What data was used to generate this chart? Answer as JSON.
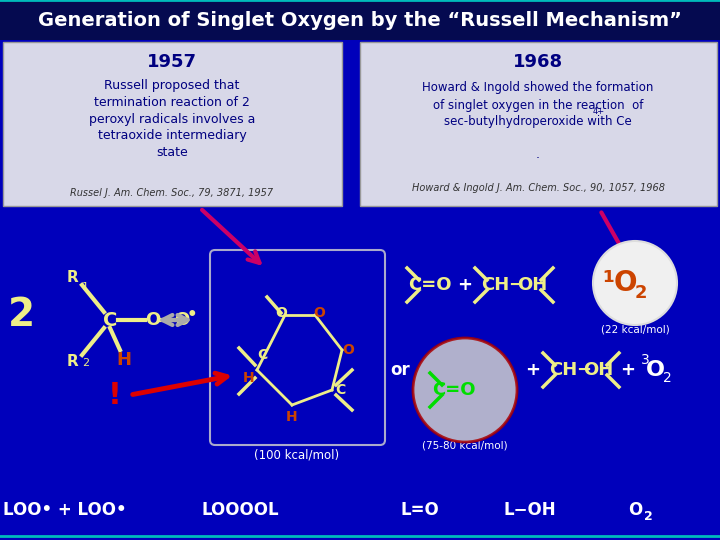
{
  "title": "Generation of Singlet Oxygen by the “Russell Mechanism”",
  "title_bg": "#050a50",
  "title_color": "#ffffff",
  "slide_bg": "#0000bb",
  "box1_bg": "#d8d8e8",
  "box2_bg": "#d8d8e8",
  "box1_year": "1957",
  "box1_text_lines": [
    "Russell proposed that",
    "termination reaction of 2",
    "peroxyl radicals involves a",
    "tetraoxide intermediary",
    "state"
  ],
  "box1_ref": "Russel J. Am. Chem. Soc., 79, 3871, 1957",
  "box2_year": "1968",
  "box2_text_lines": [
    "Howard & Ingold showed the formation",
    "of singlet oxygen in the reaction  of",
    "sec-butylhydroperoxide with Ce"
  ],
  "box2_ref": "Howard & Ingold J. Am. Chem. Soc., 90, 1057, 1968",
  "text_dark": "#000080",
  "text_yellow": "#eeee88",
  "text_orange": "#cc4400",
  "text_white": "#ffffff",
  "text_green": "#00dd00",
  "pink": "#cc0066",
  "red_arrow": "#cc0000",
  "gray_arrow": "#aaaaaa",
  "cyan_border": "#00bbbb"
}
